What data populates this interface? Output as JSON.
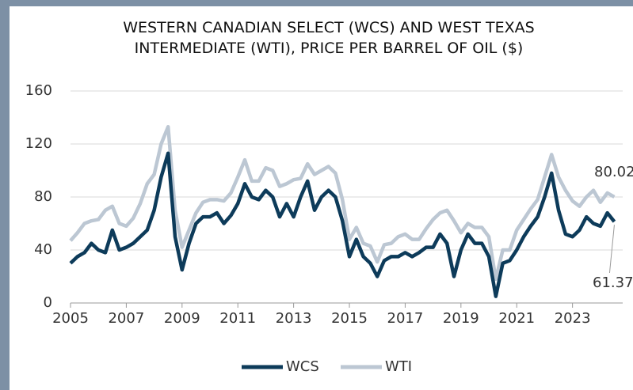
{
  "chart_data": {
    "type": "line",
    "title": "WESTERN CANADIAN SELECT (WCS) AND WEST TEXAS INTERMEDIATE (WTI), PRICE PER BARREL OF OIL ($)",
    "x": [
      2005,
      2005.25,
      2005.5,
      2005.75,
      2006,
      2006.25,
      2006.5,
      2006.75,
      2007,
      2007.25,
      2007.5,
      2007.75,
      2008,
      2008.25,
      2008.5,
      2008.75,
      2009,
      2009.25,
      2009.5,
      2009.75,
      2010,
      2010.25,
      2010.5,
      2010.75,
      2011,
      2011.25,
      2011.5,
      2011.75,
      2012,
      2012.25,
      2012.5,
      2012.75,
      2013,
      2013.25,
      2013.5,
      2013.75,
      2014,
      2014.25,
      2014.5,
      2014.75,
      2015,
      2015.25,
      2015.5,
      2015.75,
      2016,
      2016.25,
      2016.5,
      2016.75,
      2017,
      2017.25,
      2017.5,
      2017.75,
      2018,
      2018.25,
      2018.5,
      2018.75,
      2019,
      2019.25,
      2019.5,
      2019.75,
      2020,
      2020.25,
      2020.5,
      2020.75,
      2021,
      2021.25,
      2021.5,
      2021.75,
      2022,
      2022.25,
      2022.5,
      2022.75,
      2023,
      2023.25,
      2023.5,
      2023.75,
      2024,
      2024.25,
      2024.5
    ],
    "series": [
      {
        "name": "WCS",
        "color": "#0d3b5a",
        "values": [
          30,
          35,
          38,
          45,
          40,
          38,
          55,
          40,
          42,
          45,
          50,
          55,
          70,
          95,
          113,
          50,
          25,
          45,
          60,
          65,
          65,
          68,
          60,
          66,
          75,
          90,
          80,
          78,
          85,
          80,
          65,
          75,
          65,
          80,
          92,
          70,
          80,
          85,
          80,
          62,
          35,
          48,
          35,
          30,
          20,
          32,
          35,
          35,
          38,
          35,
          38,
          42,
          42,
          52,
          45,
          20,
          40,
          52,
          45,
          45,
          35,
          5,
          30,
          32,
          40,
          50,
          58,
          65,
          80,
          98,
          70,
          52,
          50,
          55,
          65,
          60,
          58,
          68,
          61.37
        ]
      },
      {
        "name": "WTI",
        "color": "#bcc7d3",
        "values": [
          47,
          53,
          60,
          62,
          63,
          70,
          73,
          60,
          58,
          64,
          75,
          90,
          97,
          120,
          133,
          70,
          42,
          55,
          68,
          76,
          78,
          78,
          77,
          83,
          95,
          108,
          92,
          92,
          102,
          100,
          88,
          90,
          93,
          94,
          105,
          97,
          100,
          103,
          98,
          78,
          48,
          57,
          45,
          43,
          31,
          44,
          45,
          50,
          52,
          48,
          48,
          56,
          63,
          68,
          70,
          62,
          53,
          60,
          57,
          57,
          50,
          18,
          40,
          40,
          55,
          63,
          71,
          78,
          95,
          112,
          95,
          85,
          77,
          73,
          80,
          85,
          76,
          83,
          80.02
        ]
      }
    ],
    "xlim": [
      2005,
      2024.8
    ],
    "xticks": [
      2005,
      2007,
      2009,
      2011,
      2013,
      2015,
      2017,
      2019,
      2021,
      2023
    ],
    "ylim": [
      0,
      160
    ],
    "yticks": [
      0,
      40,
      80,
      120,
      160
    ],
    "grid": true,
    "legend": "bottom",
    "annotations": [
      {
        "text": "80.02"
      },
      {
        "text": "61.37"
      }
    ]
  }
}
